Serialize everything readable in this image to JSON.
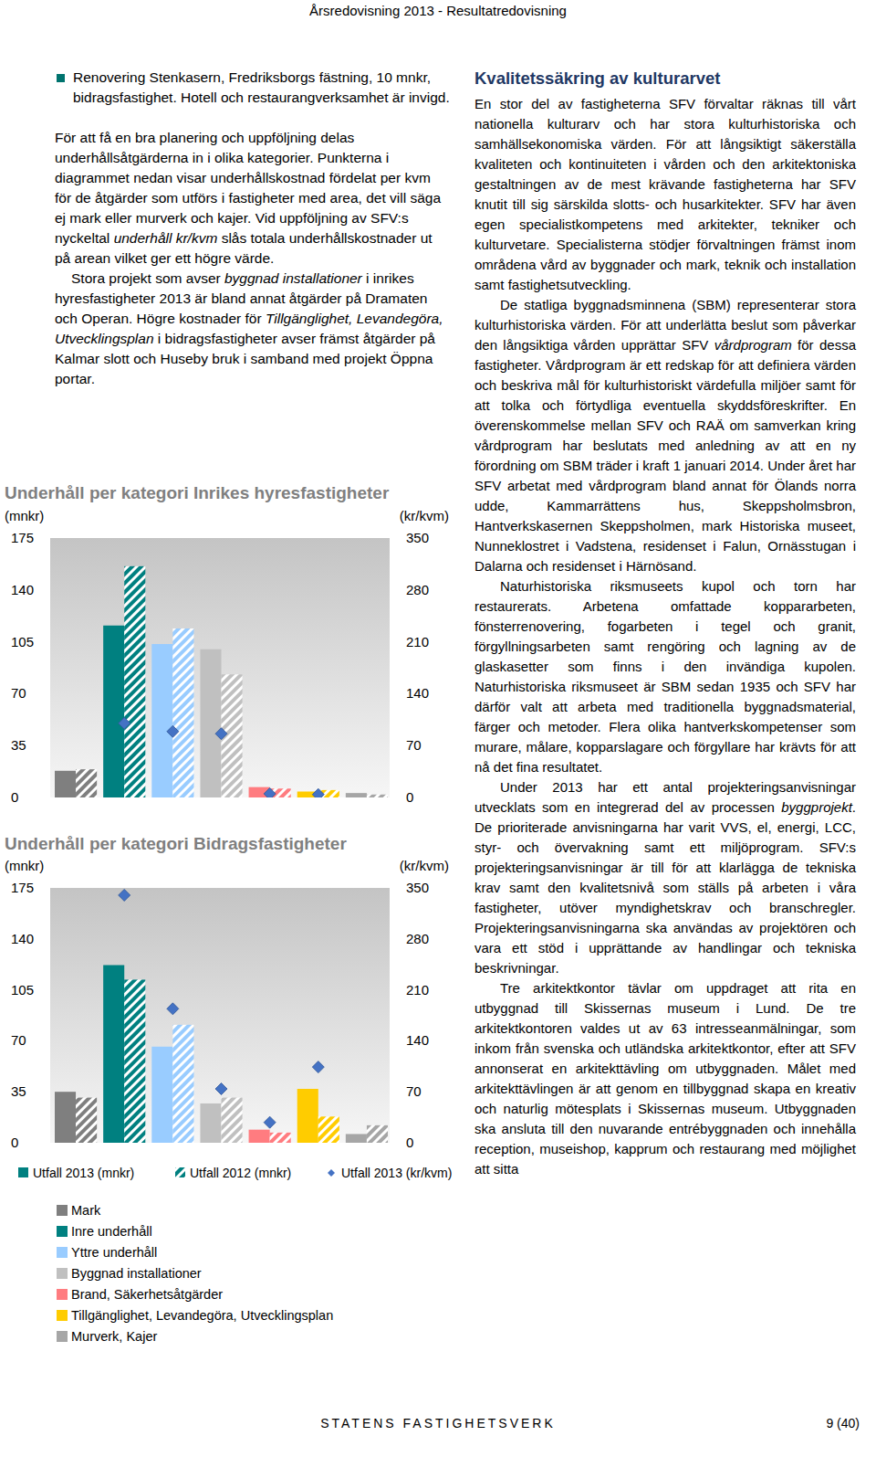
{
  "header": {
    "title": "Årsredovisning 2013 - Resultatredovisning"
  },
  "left_column": {
    "bullets": [
      "Renovering Stenkasern, Fredriksborgs fästning, 10 mnkr, bidragsfastighet. Hotell och restaurangverksamhet är invigd."
    ],
    "paragraphs": [
      [
        "För att få en bra planering och uppföljning delas underhållsåtgärderna in i olika kategorier. Punkterna i diagrammet nedan visar underhållskostnad fördelat per kvm för de åtgärder som utförs i fastigheter med area, det vill säga ej mark eller murverk och kajer. Vid uppföljning av SFV:s nyckeltal ",
        {
          "text": "underhåll kr/kvm",
          "style": "italic"
        },
        " slås totala underhållskostnader ut på arean vilket ger ett högre värde."
      ],
      [
        "Stora projekt som avser ",
        {
          "text": "byggnad installationer",
          "style": "italic"
        },
        " i inrikes hyresfastigheter 2013 är bland annat åtgärder på Dramaten och Operan. Högre kostnader för ",
        {
          "text": "Tillgänglighet, Levandegöra, Utvecklingsplan",
          "style": "italic"
        },
        " i bidragsfastigheter avser främst åtgärder på Kalmar slott och Huseby bruk i samband med projekt Öppna portar."
      ]
    ]
  },
  "chart_data": [
    {
      "type": "bar",
      "title": "Underhåll per kategori Inrikes hyresfastigheter",
      "y_label": "(mnkr)",
      "y2_label": "(kr/kvm)",
      "categories": [
        null,
        null,
        null,
        null,
        null,
        null,
        null
      ],
      "colors": [
        "#7f7f7f",
        "#008080",
        "#99ccff",
        "#c0c0c0",
        "#ff7c80",
        "#ffcc00",
        "#a6a6a6"
      ],
      "series": [
        {
          "type": "bar",
          "values": [
            18,
            116,
            103.5,
            100,
            7,
            4,
            3
          ]
        },
        {
          "type": "bar",
          "values": [
            19,
            156,
            114,
            83,
            6,
            5,
            2
          ]
        },
        {
          "type": "scatter",
          "marker": "diamond",
          "axis": "y2",
          "color": "#4472c4",
          "values": [
            null,
            100,
            89,
            86,
            5,
            4,
            null
          ]
        }
      ],
      "ylim": [
        0,
        175
      ],
      "yticks": [
        0,
        35,
        70,
        105,
        140,
        175
      ],
      "y2lim": [
        0,
        350
      ],
      "y2ticks": [
        0,
        70,
        140,
        210,
        280,
        350
      ],
      "grid": false
    },
    {
      "type": "bar",
      "title": "Underhåll per kategori Bidragsfastigheter",
      "y_label": "(mnkr)",
      "y2_label": "(kr/kvm)",
      "categories": [
        null,
        null,
        null,
        null,
        null,
        null,
        null
      ],
      "colors": [
        "#7f7f7f",
        "#008080",
        "#99ccff",
        "#c0c0c0",
        "#ff7c80",
        "#ffcc00",
        "#a6a6a6"
      ],
      "series": [
        {
          "name": "Utfall 2013 (mnkr)",
          "type": "bar",
          "values": [
            35,
            122,
            66,
            27,
            9,
            37,
            6
          ]
        },
        {
          "name": "Utfall 2012 (mnkr)",
          "type": "bar",
          "values": [
            31,
            112,
            81,
            31,
            7,
            18,
            12
          ]
        },
        {
          "name": "Utfall 2013 (kr/kvm)",
          "type": "scatter",
          "marker": "diamond",
          "axis": "y2",
          "color": "#4472c4",
          "values": [
            null,
            340,
            184,
            74,
            28,
            104,
            null
          ]
        }
      ],
      "ylim": [
        0,
        175
      ],
      "yticks": [
        0,
        35,
        70,
        105,
        140,
        175
      ],
      "y2lim": [
        0,
        350
      ],
      "y2ticks": [
        0,
        70,
        140,
        210,
        280,
        350
      ],
      "grid": false,
      "legend": "bottom"
    }
  ],
  "category_legend": [
    "Mark",
    "Inre underhåll",
    "Yttre underhåll",
    "Byggnad installationer",
    "Brand, Säkerhetsåtgärder",
    "Tillgänglighet, Levandegöra, Utvecklingsplan",
    "Murverk, Kajer"
  ],
  "right_column": {
    "title": "Kvalitetssäkring av kulturarvet",
    "paragraphs": [
      [
        "En stor del av fastigheterna SFV förvaltar räknas till vårt nationella kulturarv och har stora kulturhistoriska och samhällsekonomiska värden. För att långsiktigt säkerställa kvaliteten och kontinuiteten i vården och den arkitektoniska gestaltningen av de mest krävande fastigheterna har SFV knutit till sig särskilda slotts- och husarkitekter. SFV har även egen specialistkompetens med arkitekter, tekniker och kulturvetare. Specialisterna stödjer förvaltningen främst inom områdena vård av byggnader och mark, teknik och installation samt fastighetsutveckling."
      ],
      [
        "De statliga byggnadsminnena (SBM) representerar stora kulturhistoriska värden. För att underlätta beslut som påverkar den långsiktiga vården upprättar SFV ",
        {
          "text": "vårdprogram",
          "style": "italic"
        },
        " för dessa fastigheter. Vårdprogram är ett redskap för att definiera värden och beskriva mål för kulturhistoriskt värdefulla miljöer samt för att tolka och förtydliga eventuella skyddsföreskrifter. En överenskommelse mellan SFV och RAÄ om samverkan kring vårdprogram har beslutats med anledning av att en ny förordning om SBM träder i kraft 1 januari 2014. Under året har SFV arbetat med vårdprogram bland annat för Ölands norra udde, Kammarrättens hus, Skeppsholmsbron, Hantverkskasernen Skeppsholmen, mark Historiska museet, Nunneklostret i Vadstena, residenset i Falun, Ornässtugan i Dalarna och residenset i Härnösand."
      ],
      [
        "Naturhistoriska riksmuseets kupol och torn har restaurerats. Arbetena omfattade koppararbeten, fönsterrenovering, fogarbeten i tegel och granit, förgyllningsarbeten samt rengöring och lagning av de glaskasetter som finns i den invändiga kupolen. Naturhistoriska riksmuseet är SBM sedan 1935 och SFV har därför valt att arbeta med traditionella byggnadsmaterial, färger och metoder. Flera olika hantverkskompetenser som murare, målare, kopparslagare och förgyllare har krävts för att nå det fina resultatet."
      ],
      [
        "Under 2013 har ett antal projekteringsanvisningar utvecklats som en integrerad del av processen ",
        {
          "text": "byggprojekt",
          "style": "italic"
        },
        ". De prioriterade anvisningarna har varit VVS, el, energi, LCC, styr- och övervakning samt ett miljöprogram. SFV:s projekteringsanvisningar är till för att klarlägga de tekniska krav samt den kvalitetsnivå som ställs på arbeten i våra fastigheter, utöver myndighetskrav och branschregler. Projekteringsanvisningarna ska användas av projektören och vara ett stöd i upprättande av handlingar och tekniska beskrivningar."
      ],
      [
        "Tre arkitektkontor tävlar om uppdraget att rita en utbyggnad till Skissernas museum i Lund. De tre arkitektkontoren valdes ut av 63 intresseanmälningar, som inkom från svenska och utländska arkitektkontor, efter att SFV annonserat en arkitekttävling om utbyggnaden. Målet med arkitekttävlingen är att genom en tillbyggnad skapa en kreativ och naturlig mötesplats i Skissernas museum. Utbyggnaden ska ansluta till den nuvarande entrébyggnaden och innehålla reception, museishop, kapprum och restaurang med möjlighet att sitta"
      ]
    ]
  },
  "footer": {
    "organization": "STATENS FASTIGHETSVERK",
    "page": "9 (40)"
  }
}
